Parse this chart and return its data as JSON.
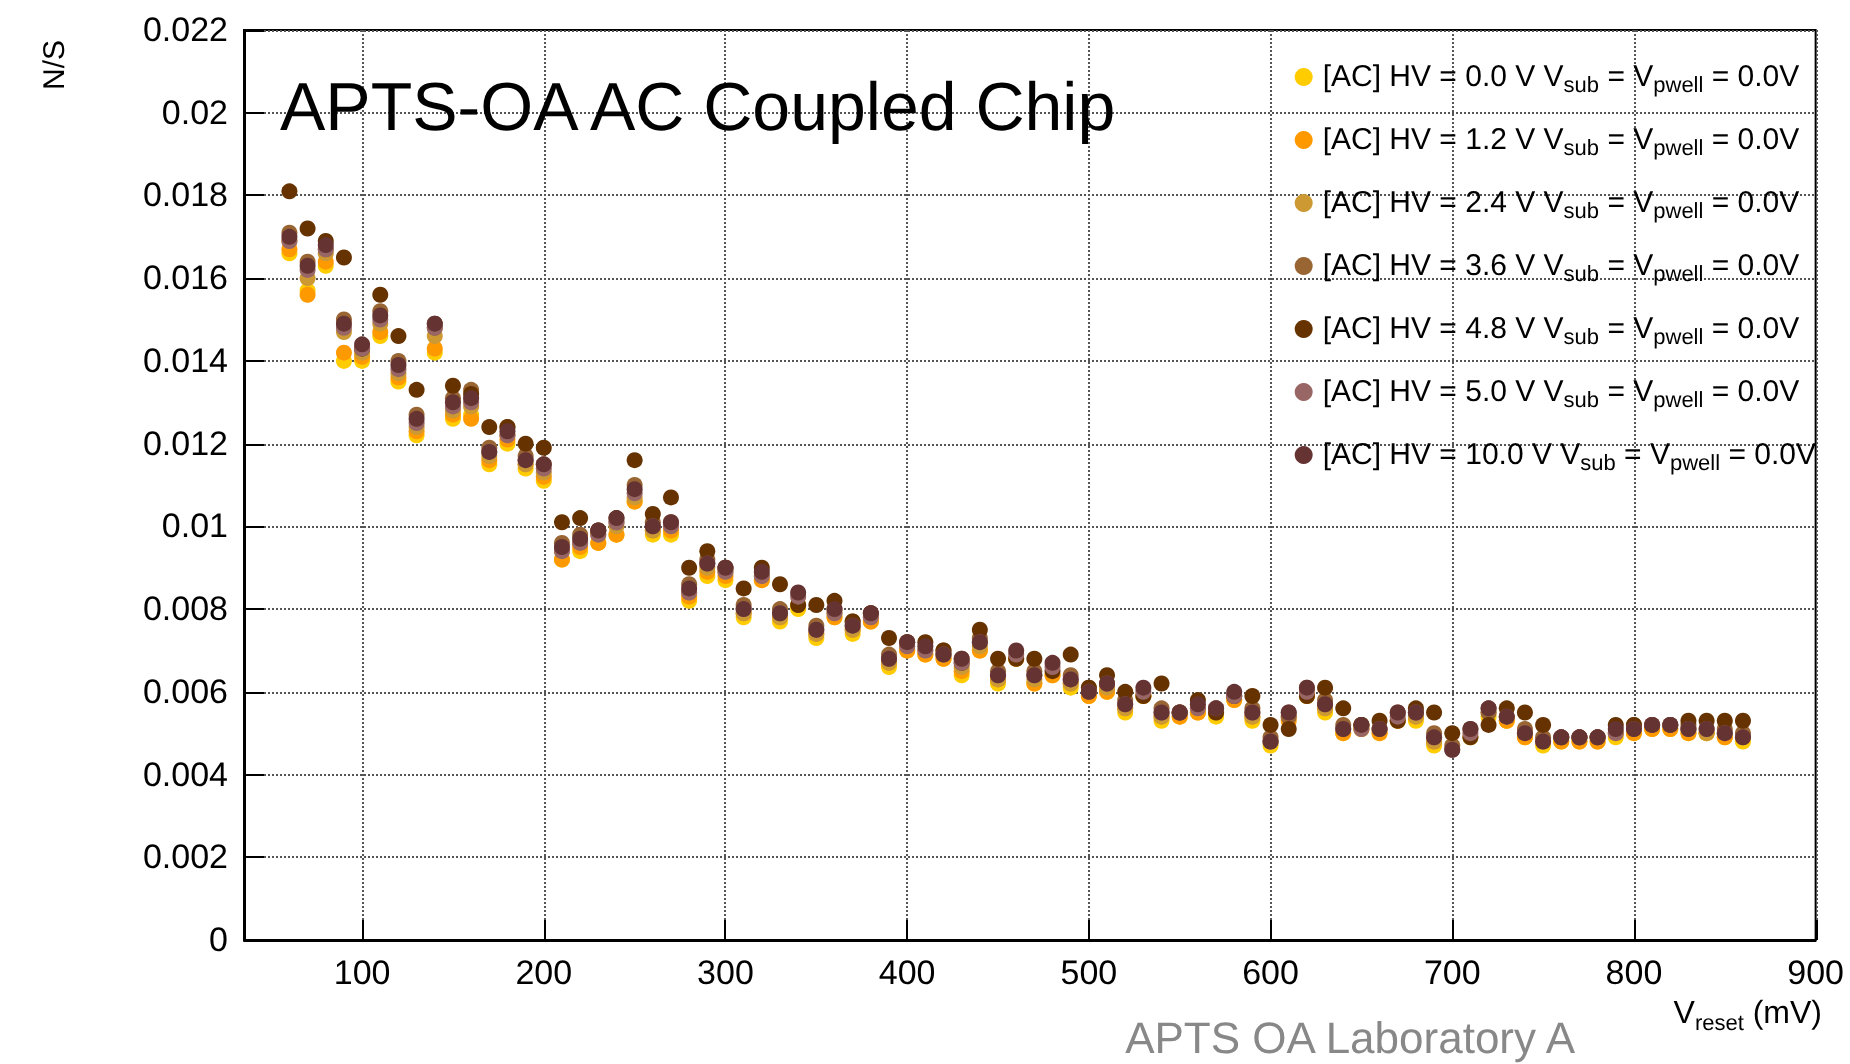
{
  "chart_data": {
    "type": "scatter",
    "title": "APTS-OA AC Coupled Chip",
    "xlabel": "V$_{reset}$ (mV)",
    "ylabel": "N/S",
    "annotations": [
      "APTS OA Laboratory A"
    ],
    "xlim": [
      35,
      900
    ],
    "xticks": [
      100,
      200,
      300,
      400,
      500,
      600,
      700,
      800,
      900
    ],
    "ylim": [
      0,
      0.022
    ],
    "yticks": [
      0,
      0.002,
      0.004,
      0.006,
      0.008,
      0.01,
      0.012,
      0.014,
      0.016,
      0.018,
      0.02,
      0.022
    ],
    "grid": true,
    "legend": "top right",
    "marker": "circle",
    "x": [
      60,
      70,
      80,
      90,
      100,
      110,
      120,
      130,
      140,
      150,
      160,
      170,
      180,
      190,
      200,
      210,
      220,
      230,
      240,
      250,
      260,
      270,
      280,
      290,
      300,
      310,
      320,
      330,
      340,
      350,
      360,
      370,
      380,
      390,
      400,
      410,
      420,
      430,
      440,
      450,
      460,
      470,
      480,
      490,
      500,
      510,
      520,
      530,
      540,
      550,
      560,
      570,
      580,
      590,
      600,
      610,
      620,
      630,
      640,
      650,
      660,
      670,
      680,
      690,
      700,
      710,
      720,
      730,
      740,
      750,
      760,
      770,
      780,
      790,
      800,
      810,
      820,
      830,
      840,
      850,
      860
    ],
    "series": [
      {
        "name": "[AC] HV = 0.0 V V$_{sub}$ = V$_{pwell}$ = 0.0V",
        "color": "#ffcc00",
        "values": [
          0.0166,
          0.0157,
          0.0163,
          0.014,
          0.014,
          0.0146,
          0.0135,
          0.0122,
          0.0142,
          0.0126,
          0.0127,
          0.0115,
          0.012,
          0.0114,
          0.0111,
          0.0092,
          0.0094,
          0.0096,
          0.0098,
          0.0106,
          0.0098,
          0.0098,
          0.0082,
          0.0088,
          0.0087,
          0.0078,
          0.0087,
          0.0077,
          0.008,
          0.0073,
          0.0078,
          0.0074,
          0.0077,
          0.0066,
          0.007,
          0.0069,
          0.0068,
          0.0064,
          0.007,
          0.0062,
          0.0068,
          0.0062,
          0.0064,
          0.0061,
          0.0059,
          0.006,
          0.0055,
          0.0059,
          0.0053,
          0.0054,
          0.0055,
          0.0054,
          0.0058,
          0.0053,
          0.0047,
          null,
          0.0059,
          0.0055,
          0.005,
          0.0051,
          0.005,
          0.0053,
          0.0053,
          0.0047,
          null,
          0.0049,
          0.0054,
          0.0053,
          0.0049,
          0.0047,
          0.0048,
          0.0048,
          0.0048,
          0.0049,
          0.005,
          0.0051,
          0.0051,
          0.005,
          0.005,
          0.0049,
          0.0048
        ]
      },
      {
        "name": "[AC] HV = 1.2 V V$_{sub}$ = V$_{pwell}$ = 0.0V",
        "color": "#ff9900",
        "values": [
          0.0167,
          0.0156,
          0.0164,
          0.0142,
          0.0141,
          0.0147,
          0.0136,
          0.0123,
          0.0143,
          0.0127,
          0.0126,
          0.0116,
          0.0121,
          0.0115,
          0.0112,
          0.0092,
          0.0095,
          0.0096,
          0.0098,
          0.0106,
          0.0099,
          0.0099,
          0.0083,
          0.0089,
          0.0088,
          0.0079,
          0.0087,
          0.0078,
          0.0081,
          0.0074,
          0.0078,
          0.0075,
          0.0077,
          0.0067,
          0.007,
          0.0069,
          0.0068,
          0.0065,
          0.007,
          0.0063,
          0.0068,
          0.0062,
          0.0064,
          0.0062,
          0.0059,
          0.006,
          0.0056,
          0.0059,
          0.0054,
          0.0054,
          0.0055,
          null,
          0.0058,
          0.0054,
          null,
          0.0053,
          0.0059,
          0.0056,
          0.005,
          0.0051,
          0.005,
          0.0053,
          0.0054,
          0.0048,
          null,
          null,
          null,
          0.0053,
          0.0049,
          null,
          0.0048,
          0.0048,
          0.0048,
          0.005,
          0.005,
          0.0051,
          0.0051,
          0.005,
          0.005,
          0.0049,
          null
        ]
      },
      {
        "name": "[AC] HV = 2.4 V V$_{sub}$ = V$_{pwell}$ = 0.0V",
        "color": "#cc9933",
        "values": [
          0.0169,
          0.016,
          0.0166,
          0.0147,
          0.0142,
          0.0149,
          0.0137,
          0.0124,
          0.0146,
          0.0128,
          0.0129,
          0.0117,
          0.0122,
          0.0115,
          0.0113,
          0.0094,
          0.0096,
          0.0098,
          0.01,
          0.0107,
          0.0099,
          0.01,
          0.0084,
          0.009,
          0.0089,
          0.0079,
          0.0088,
          0.0078,
          null,
          0.0074,
          0.0079,
          0.0075,
          0.0078,
          0.0067,
          0.0071,
          0.007,
          0.0069,
          0.0066,
          0.0071,
          0.0063,
          null,
          0.0063,
          null,
          0.0062,
          null,
          0.0061,
          0.0056,
          null,
          0.0054,
          0.0055,
          0.0056,
          0.0055,
          null,
          0.0054,
          0.0048,
          0.0054,
          null,
          0.0056,
          null,
          0.0052,
          0.0051,
          null,
          0.0054,
          0.0048,
          null,
          null,
          0.0055,
          0.0054,
          null,
          null,
          null,
          0.0049,
          0.0049,
          0.005,
          null,
          null,
          null,
          0.0051,
          0.005,
          null,
          null
        ]
      },
      {
        "name": "[AC] HV = 3.6 V V$_{sub}$ = V$_{pwell}$ = 0.0V",
        "color": "#996633",
        "values": [
          0.0171,
          0.0164,
          0.0167,
          0.015,
          0.0143,
          0.0152,
          0.014,
          0.0127,
          0.0148,
          0.0131,
          0.0133,
          0.0119,
          0.0124,
          0.0117,
          0.0115,
          0.0096,
          0.0098,
          0.0099,
          0.0101,
          0.011,
          0.0101,
          0.0101,
          0.0086,
          0.0092,
          0.009,
          0.0081,
          null,
          0.008,
          null,
          0.0076,
          0.008,
          0.0077,
          0.0079,
          0.0069,
          0.0072,
          null,
          0.007,
          0.0068,
          0.0073,
          0.0065,
          null,
          0.0065,
          null,
          0.0064,
          0.0061,
          0.0062,
          0.0058,
          null,
          0.0056,
          0.0055,
          null,
          0.0056,
          0.0059,
          0.0056,
          0.0049,
          0.0054,
          0.0061,
          0.0058,
          0.0052,
          0.0052,
          null,
          0.0055,
          0.0055,
          0.005,
          0.0047,
          0.0051,
          0.0055,
          null,
          0.0051,
          0.0049,
          0.0049,
          0.0049,
          0.0049,
          null,
          0.0052,
          0.0052,
          0.0052,
          0.0052,
          null,
          0.0051,
          0.005
        ]
      },
      {
        "name": "[AC] HV = 4.8 V V$_{sub}$ = V$_{pwell}$ = 0.0V",
        "color": "#663300",
        "values": [
          0.0181,
          0.0172,
          0.0169,
          0.0165,
          0.0143,
          0.0156,
          0.0146,
          0.0133,
          0.0149,
          0.0134,
          0.0132,
          0.0124,
          0.0124,
          0.012,
          0.0119,
          0.0101,
          0.0102,
          0.0099,
          0.0102,
          0.0116,
          0.0103,
          0.0107,
          0.009,
          0.0094,
          0.009,
          0.0085,
          0.009,
          0.0086,
          0.0081,
          0.0081,
          0.0082,
          0.0077,
          0.0079,
          0.0073,
          0.0072,
          0.0072,
          0.007,
          0.0067,
          0.0075,
          0.0068,
          0.0068,
          0.0068,
          0.0065,
          0.0069,
          0.0061,
          0.0064,
          0.006,
          0.0059,
          0.0062,
          0.0055,
          0.0058,
          0.0055,
          0.0059,
          0.0059,
          0.0052,
          0.0051,
          0.0059,
          0.0061,
          0.0056,
          0.0052,
          0.0053,
          0.0053,
          0.0056,
          0.0055,
          0.005,
          0.0049,
          0.0052,
          0.0056,
          0.0055,
          0.0052,
          0.0049,
          0.0049,
          0.0049,
          0.0052,
          0.0052,
          0.0052,
          0.0052,
          0.0053,
          0.0053,
          0.0053,
          0.0053
        ]
      },
      {
        "name": "[AC] HV = 5.0 V V$_{sub}$ = V$_{pwell}$ = 0.0V",
        "color": "#996666",
        "values": [
          0.0169,
          0.0162,
          0.0167,
          0.0148,
          0.0143,
          0.015,
          0.0138,
          0.0125,
          0.0148,
          0.0129,
          0.013,
          0.0118,
          0.0122,
          0.0116,
          0.0114,
          0.0094,
          0.0096,
          0.0098,
          0.0101,
          0.0108,
          0.01,
          0.01,
          0.0084,
          0.0091,
          0.0089,
          0.008,
          0.0088,
          0.0079,
          0.0083,
          0.0075,
          0.0079,
          0.0076,
          0.0078,
          0.0068,
          0.0071,
          0.007,
          0.0069,
          0.0067,
          0.0072,
          0.0064,
          0.0069,
          0.0064,
          0.0066,
          0.0063,
          0.006,
          0.0062,
          0.0057,
          0.006,
          0.0055,
          0.0055,
          0.0056,
          0.0056,
          0.0059,
          0.0055,
          0.0048,
          0.0055,
          0.006,
          0.0057,
          0.0051,
          0.0051,
          0.0051,
          0.0054,
          0.0055,
          0.0049,
          0.0046,
          0.005,
          0.0056,
          0.0054,
          0.005,
          0.0048,
          0.0049,
          0.0049,
          0.0049,
          0.005,
          0.0051,
          0.0052,
          0.0052,
          0.0051,
          0.0051,
          0.005,
          0.0049
        ]
      },
      {
        "name": "[AC] HV = 10.0 V V$_{sub}$ = V$_{pwell}$ = 0.0V",
        "color": "#663333",
        "values": [
          0.017,
          0.0163,
          0.0168,
          0.0149,
          0.0144,
          0.0151,
          0.0139,
          0.0126,
          0.0149,
          0.013,
          0.0131,
          0.0118,
          0.0123,
          0.0116,
          0.0115,
          0.0095,
          0.0097,
          0.0099,
          0.0102,
          0.0109,
          0.01,
          0.0101,
          0.0085,
          0.0091,
          0.009,
          0.008,
          0.0089,
          0.0079,
          0.0084,
          0.0075,
          0.008,
          0.0076,
          0.0079,
          0.0068,
          0.0072,
          0.0071,
          0.0069,
          0.0068,
          0.0072,
          0.0064,
          0.007,
          0.0064,
          0.0067,
          0.0063,
          0.006,
          0.0062,
          0.0057,
          0.0061,
          0.0055,
          0.0055,
          0.0057,
          0.0056,
          0.006,
          0.0055,
          0.0048,
          0.0055,
          0.0061,
          0.0057,
          0.0051,
          0.0052,
          0.0051,
          0.0055,
          0.0055,
          0.0049,
          0.0046,
          0.0051,
          0.0056,
          0.0054,
          0.005,
          0.0048,
          0.0049,
          0.0049,
          0.0049,
          0.0051,
          0.0051,
          0.0052,
          0.0052,
          0.0051,
          0.0051,
          0.005,
          0.0049
        ]
      }
    ]
  }
}
